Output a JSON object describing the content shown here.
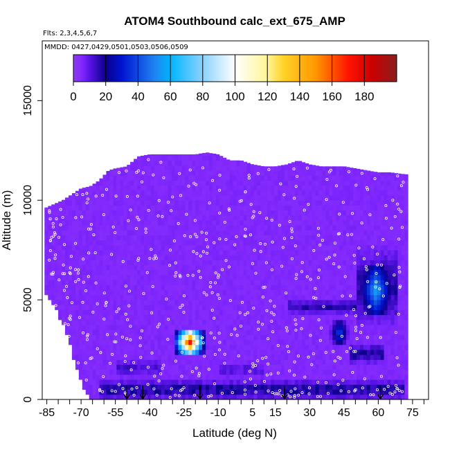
{
  "chart_data": {
    "type": "heatmap",
    "title": "ATOM4 Southbound calc_ext_675_AMP",
    "notes": [
      "Flts: 2,3,4,5,6,7",
      "MMDD: 0427,0429,0501,0503,0506,0509"
    ],
    "xlabel": "Latitude (deg N)",
    "ylabel": "Altitude (m)",
    "xlim": [
      -87,
      82
    ],
    "ylim": [
      0,
      18000
    ],
    "x_ticks": [
      -85,
      -70,
      -55,
      -40,
      -25,
      -10,
      5,
      15,
      30,
      45,
      60,
      75
    ],
    "y_ticks": [
      0,
      5000,
      10000,
      15000
    ],
    "colorbar": {
      "range": [
        0,
        200
      ],
      "ticks": [
        0,
        20,
        40,
        60,
        80,
        100,
        120,
        140,
        160,
        180
      ],
      "placement": "top"
    },
    "background_value": 5,
    "coverage": {
      "latitudes": [
        -86,
        -78,
        -74,
        -70,
        -66,
        -62,
        -58,
        -55,
        -50,
        -45,
        -40,
        -35,
        -30,
        -25,
        -20,
        -15,
        -10,
        -5,
        0,
        5,
        10,
        15,
        20,
        25,
        30,
        35,
        40,
        45,
        50,
        55,
        60,
        65,
        72
      ],
      "top_altitude": [
        9600,
        10000,
        10300,
        10600,
        10700,
        11000,
        11500,
        11600,
        11700,
        12200,
        12300,
        12300,
        12300,
        12300,
        12300,
        12400,
        12300,
        12000,
        12000,
        11800,
        11700,
        11700,
        11800,
        12000,
        11800,
        11700,
        11700,
        11700,
        11600,
        11500,
        11400,
        11400,
        11300
      ],
      "bottom_altitude": [
        5500,
        4000,
        2500,
        1000,
        0,
        0,
        0,
        0,
        0,
        0,
        0,
        0,
        0,
        0,
        0,
        0,
        0,
        0,
        0,
        0,
        0,
        0,
        0,
        0,
        0,
        0,
        0,
        0,
        0,
        0,
        0,
        0,
        200
      ]
    },
    "features": [
      {
        "lat": [
          -30,
          -15
        ],
        "alt": [
          2300,
          3500
        ],
        "peak": 185,
        "profile": "sharp"
      },
      {
        "lat": [
          50,
          68
        ],
        "alt": [
          4200,
          6800
        ],
        "peak": 60,
        "profile": "sharp"
      },
      {
        "lat": [
          50,
          68
        ],
        "alt": [
          3500,
          7800
        ],
        "peak": 22,
        "profile": "flat"
      },
      {
        "lat": [
          38,
          48
        ],
        "alt": [
          2700,
          4000
        ],
        "peak": 40,
        "profile": "sharp"
      },
      {
        "lat": [
          48,
          62
        ],
        "alt": [
          1800,
          2800
        ],
        "peak": 25,
        "profile": "flat"
      },
      {
        "lat": [
          20,
          50
        ],
        "alt": [
          4200,
          5100
        ],
        "peak": 20,
        "profile": "flat"
      },
      {
        "lat": [
          -62,
          72
        ],
        "alt": [
          0,
          1000
        ],
        "peak": 25,
        "profile": "flat"
      },
      {
        "lat": [
          -55,
          -35
        ],
        "alt": [
          1000,
          2200
        ],
        "peak": 16,
        "profile": "flat"
      },
      {
        "lat": [
          -10,
          10
        ],
        "alt": [
          1000,
          2000
        ],
        "peak": 15,
        "profile": "flat"
      }
    ],
    "arrow_latitudes": [
      -50,
      -43,
      -18,
      19,
      61
    ]
  }
}
